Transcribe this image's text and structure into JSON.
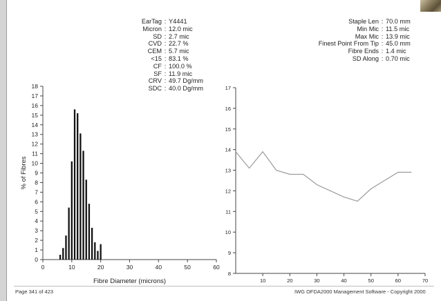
{
  "stats_left": [
    {
      "label": "EarTag",
      "value": "Y4441"
    },
    {
      "label": "Micron",
      "value": "12.0 mic"
    },
    {
      "label": "SD",
      "value": "2.7 mic"
    },
    {
      "label": "CVD",
      "value": "22.7 %"
    },
    {
      "label": "CEM",
      "value": "5.7 mic"
    },
    {
      "label": "<15",
      "value": "83.1 %"
    },
    {
      "label": "CF",
      "value": "100.0 %"
    },
    {
      "label": "SF",
      "value": "11.9 mic"
    },
    {
      "label": "CRV",
      "value": "49.7 Dg/mm"
    },
    {
      "label": "SDC",
      "value": "40.0 Dg/mm"
    }
  ],
  "stats_right": [
    {
      "label": "Staple Len",
      "value": "70.0 mm"
    },
    {
      "label": "Min Mic",
      "value": "11.5 mic"
    },
    {
      "label": "Max Mic",
      "value": "13.9 mic"
    },
    {
      "label": "Finest Point From Tip",
      "value": "45.0 mm"
    },
    {
      "label": "Fibre Ends",
      "value": "1.4 mic"
    },
    {
      "label": "SD Along",
      "value": "0.70 mic"
    }
  ],
  "footer": {
    "page": "Page 341 of 423",
    "copyright": "IWG OFDA2000 Management Software - Copyright 2000"
  },
  "colors": {
    "bars": "#111111",
    "profile_line": "#9a9a9a",
    "axis": "#444444"
  },
  "chart_data": [
    {
      "type": "bar",
      "xlabel": "Fibre Diameter (microns)",
      "ylabel": "% of Fibres",
      "xlim": [
        0,
        60
      ],
      "ylim": [
        0,
        18
      ],
      "x_ticks": [
        0,
        10,
        20,
        30,
        40,
        50,
        60
      ],
      "y_ticks": [
        0,
        1,
        2,
        3,
        4,
        5,
        6,
        7,
        8,
        9,
        10,
        11,
        12,
        13,
        14,
        15,
        16,
        17,
        18
      ],
      "x": [
        6,
        7,
        8,
        9,
        10,
        11,
        12,
        13,
        14,
        15,
        16,
        17,
        18,
        19,
        20
      ],
      "values": [
        0.5,
        1.2,
        2.5,
        5.4,
        10.2,
        15.6,
        15.2,
        13.1,
        11.3,
        8.3,
        5.8,
        3.3,
        1.8,
        0.9,
        1.6
      ],
      "grid": false
    },
    {
      "type": "line",
      "xlabel": "",
      "ylabel": "",
      "xlim": [
        0,
        70
      ],
      "ylim": [
        8,
        17
      ],
      "x_ticks": [
        10,
        20,
        30,
        40,
        50,
        60,
        70
      ],
      "y_ticks": [
        8,
        9,
        10,
        11,
        12,
        13,
        14,
        15,
        16,
        17
      ],
      "x": [
        0,
        5,
        10,
        15,
        20,
        25,
        30,
        35,
        40,
        45,
        50,
        55,
        60,
        65
      ],
      "values": [
        13.9,
        13.1,
        13.9,
        13.0,
        12.8,
        12.8,
        12.3,
        12.0,
        11.7,
        11.5,
        12.1,
        12.5,
        12.9,
        12.9
      ],
      "grid": false
    }
  ]
}
